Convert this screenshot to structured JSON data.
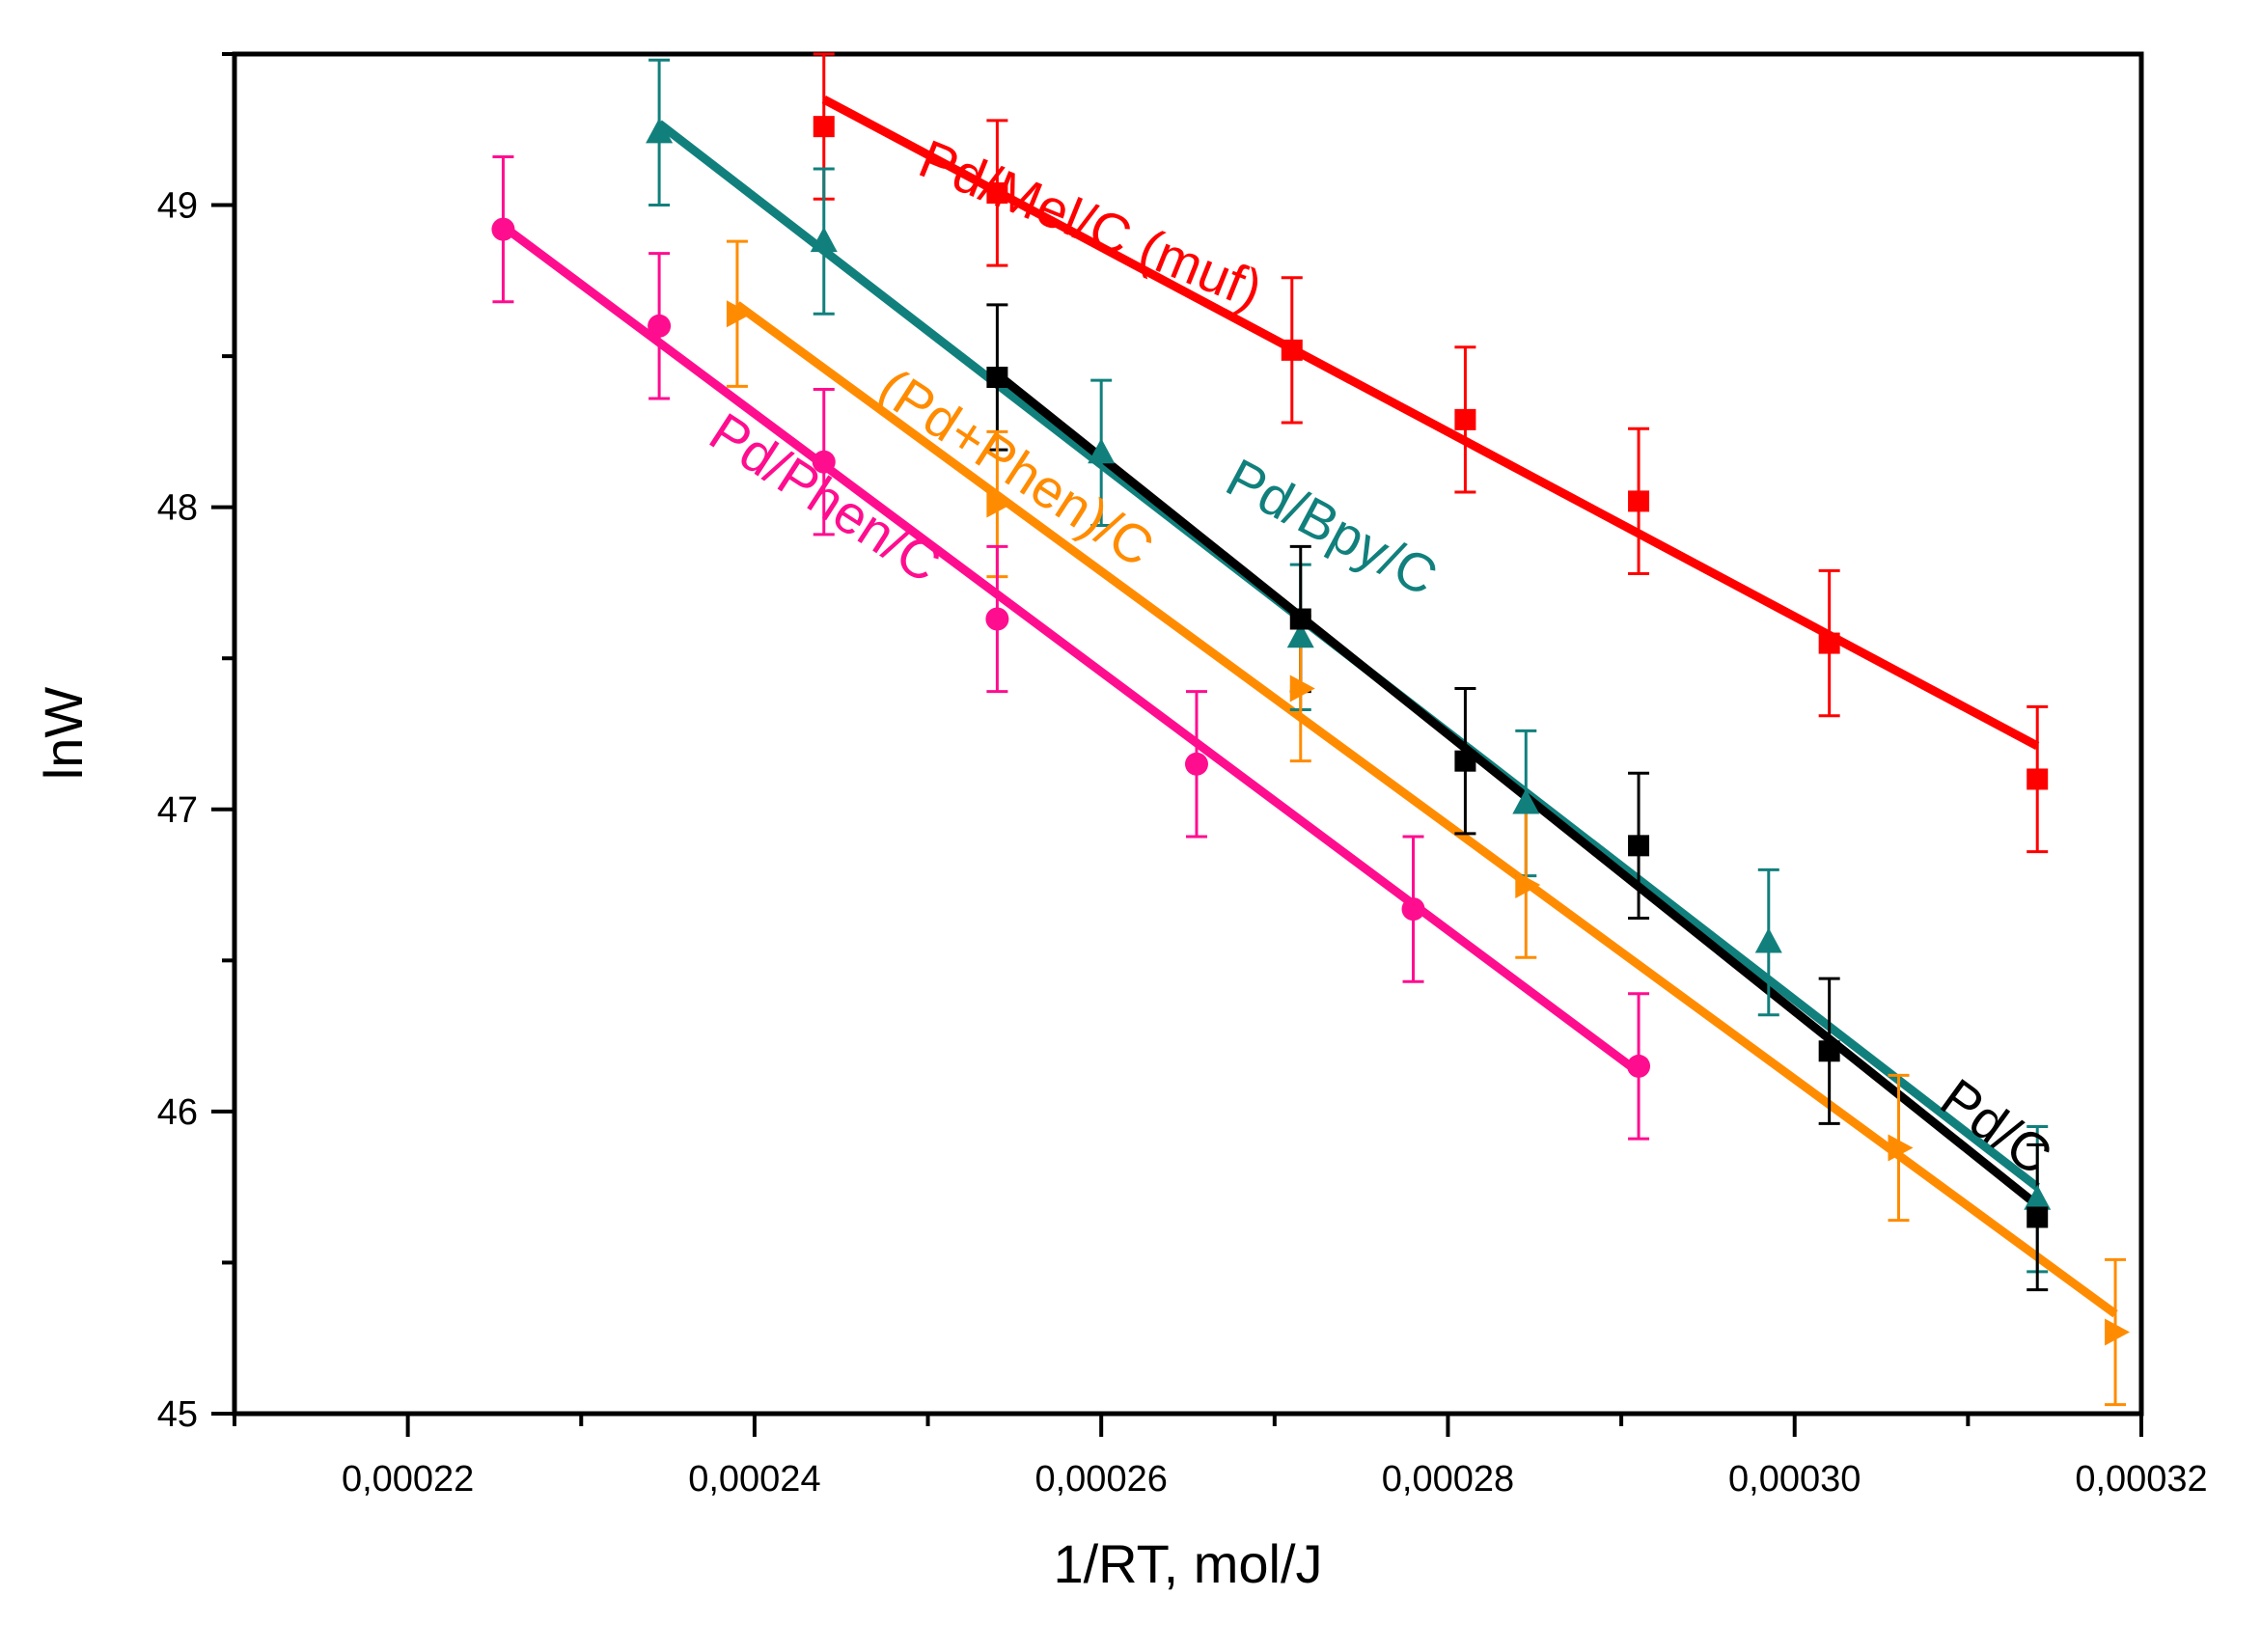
{
  "chart_data": {
    "type": "scatter",
    "title": "",
    "xlabel": "1/RT, mol/J",
    "ylabel": "lnW",
    "xlim": [
      0.00021,
      0.00032
    ],
    "ylim": [
      45,
      49.5
    ],
    "x_ticks": [
      0.00022,
      0.00024,
      0.00026,
      0.00028,
      0.0003,
      0.00032
    ],
    "x_tick_labels": [
      "0,00022",
      "0,00024",
      "0,00026",
      "0,00028",
      "0,00030",
      "0,00032"
    ],
    "y_ticks": [
      45,
      46,
      47,
      48,
      49
    ],
    "y_tick_labels": [
      "45",
      "46",
      "47",
      "48",
      "49"
    ],
    "grid": false,
    "series": [
      {
        "name": "Pd/Mel/C (muf)",
        "color": "#ff0000",
        "marker": "square",
        "x": [
          0.000244,
          0.000254,
          0.000271,
          0.000281,
          0.000291,
          0.000302,
          0.000314
        ],
        "y": [
          49.26,
          49.04,
          48.52,
          48.29,
          48.02,
          47.55,
          47.1
        ],
        "err": [
          0.24,
          0.24,
          0.24,
          0.24,
          0.24,
          0.24,
          0.24
        ],
        "fit": [
          [
            0.000244,
            49.35
          ],
          [
            0.000314,
            47.21
          ]
        ]
      },
      {
        "name": "Pd/Bpy/C",
        "color": "#11807d",
        "marker": "triangle-up",
        "x": [
          0.0002345,
          0.000244,
          0.00026,
          0.0002715,
          0.0002845,
          0.0002985,
          0.000314
        ],
        "y": [
          49.24,
          48.88,
          48.18,
          47.57,
          47.02,
          46.56,
          45.71
        ],
        "err": [
          0.24,
          0.24,
          0.24,
          0.24,
          0.24,
          0.24,
          0.24
        ],
        "fit": [
          [
            0.0002345,
            49.27
          ],
          [
            0.000314,
            45.75
          ]
        ]
      },
      {
        "name": "Pd/C",
        "color": "#000000",
        "marker": "square",
        "x": [
          0.000254,
          0.0002715,
          0.000281,
          0.000291,
          0.000302,
          0.000314
        ],
        "y": [
          48.43,
          47.63,
          47.16,
          46.88,
          46.2,
          45.65
        ],
        "err": [
          0.24,
          0.24,
          0.24,
          0.24,
          0.24,
          0.24
        ],
        "fit": [
          [
            0.000254,
            48.44
          ],
          [
            0.000314,
            45.69
          ]
        ]
      },
      {
        "name": "(Pd+Phen)/C",
        "color": "#ff8c00",
        "marker": "triangle-right",
        "x": [
          0.000239,
          0.000254,
          0.0002715,
          0.0002845,
          0.000306,
          0.0003185
        ],
        "y": [
          48.64,
          48.01,
          47.4,
          46.75,
          45.88,
          45.27
        ],
        "err": [
          0.24,
          0.24,
          0.24,
          0.24,
          0.24,
          0.24
        ],
        "fit": [
          [
            0.000239,
            48.67
          ],
          [
            0.0003185,
            45.33
          ]
        ]
      },
      {
        "name": "Pd/Phen/C",
        "color": "#ff0d8f",
        "marker": "circle",
        "x": [
          0.0002255,
          0.0002345,
          0.000244,
          0.000254,
          0.0002655,
          0.000278,
          0.000291
        ],
        "y": [
          48.92,
          48.6,
          48.15,
          47.63,
          47.15,
          46.67,
          46.15
        ],
        "err": [
          0.24,
          0.24,
          0.24,
          0.24,
          0.24,
          0.24,
          0.24
        ],
        "fit": [
          [
            0.0002255,
            48.93
          ],
          [
            0.000291,
            46.13
          ]
        ]
      }
    ],
    "annotations": [
      {
        "text": "Pd/Mel/C (muf)",
        "series": 0,
        "x": 0.000259,
        "y": 48.88,
        "angle": 22
      },
      {
        "text": "Pd/Bpy/C",
        "series": 1,
        "x": 0.0002728,
        "y": 47.88,
        "angle": 28
      },
      {
        "text": "Pd/C",
        "series": 2,
        "x": 0.000311,
        "y": 45.9,
        "angle": 36
      },
      {
        "text": "(Pd+Phen)/C",
        "series": 3,
        "x": 0.0002545,
        "y": 48.08,
        "angle": 33
      },
      {
        "text": "Pd/Phen/C",
        "series": 4,
        "x": 0.0002435,
        "y": 47.98,
        "angle": 33
      }
    ]
  }
}
